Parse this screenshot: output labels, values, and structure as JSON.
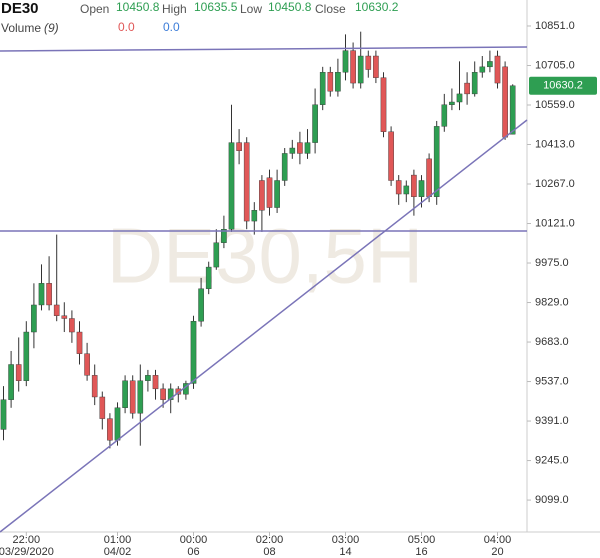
{
  "chart_data": {
    "type": "candlestick",
    "title": "DE30",
    "watermark": "DE30,5H",
    "header": {
      "open_label": "Open",
      "open": 10450.8,
      "high_label": "High",
      "high": 10635.5,
      "low_label": "Low",
      "low": 10450.8,
      "close_label": "Close",
      "close": 10630.2,
      "volume_label": "Volume",
      "volume_period": "(9)",
      "volume_values": [
        "0.0",
        "0.0"
      ]
    },
    "up_color": "#2e9e52",
    "down_color": "#e05757",
    "categories": [
      null,
      null,
      null,
      "22:00",
      null,
      null,
      null,
      null,
      null,
      null,
      null,
      null,
      null,
      null,
      null,
      "01:00",
      null,
      null,
      null,
      null,
      null,
      null,
      null,
      null,
      null,
      "00:00",
      null,
      null,
      null,
      null,
      null,
      null,
      null,
      null,
      null,
      "02:00",
      null,
      null,
      null,
      null,
      null,
      null,
      null,
      null,
      null,
      "03:00",
      null,
      null,
      null,
      null,
      null,
      null,
      null,
      null,
      null,
      "05:00",
      null,
      null,
      null,
      null,
      null,
      null,
      null,
      null,
      null,
      "04:00",
      null,
      null
    ],
    "category_dates": [
      null,
      null,
      null,
      "03/29/2020",
      null,
      null,
      null,
      null,
      null,
      null,
      null,
      null,
      null,
      null,
      null,
      "04/02",
      null,
      null,
      null,
      null,
      null,
      null,
      null,
      null,
      null,
      "06",
      null,
      null,
      null,
      null,
      null,
      null,
      null,
      null,
      null,
      "08",
      null,
      null,
      null,
      null,
      null,
      null,
      null,
      null,
      null,
      "14",
      null,
      null,
      null,
      null,
      null,
      null,
      null,
      null,
      null,
      "16",
      null,
      null,
      null,
      null,
      null,
      null,
      null,
      null,
      null,
      "20",
      null,
      null
    ],
    "open": [
      9360,
      9470,
      9600,
      9540,
      9720,
      9820,
      9900,
      9820,
      9780,
      9770,
      9720,
      9640,
      9560,
      9480,
      9400,
      9320,
      9440,
      9540,
      9420,
      9540,
      9560,
      9510,
      9470,
      9510,
      9490,
      9530,
      9760,
      9880,
      9960,
      10050,
      10100,
      10420,
      10420,
      10130,
      10280,
      10290,
      10180,
      10280,
      10380,
      10420,
      10380,
      10420,
      10560,
      10680,
      10610,
      10680,
      10760,
      10640,
      10740,
      10740,
      10660,
      10460,
      10280,
      10230,
      10300,
      10220,
      10360,
      10220,
      10480,
      10560,
      10570,
      10640,
      10600,
      10680,
      10700,
      10740,
      10700,
      10450.8
    ],
    "high": [
      9520,
      9650,
      9700,
      9760,
      9900,
      9970,
      10000,
      10080,
      9830,
      9800,
      9760,
      9680,
      9600,
      9500,
      9420,
      9460,
      9560,
      9560,
      9600,
      9580,
      9580,
      9530,
      9530,
      9520,
      9540,
      9780,
      9920,
      9980,
      10100,
      10150,
      10560,
      10470,
      10440,
      10200,
      10300,
      10320,
      10320,
      10400,
      10430,
      10460,
      10470,
      10620,
      10700,
      10700,
      10730,
      10820,
      10790,
      10830,
      10760,
      10760,
      10680,
      10480,
      10300,
      10280,
      10320,
      10300,
      10380,
      10500,
      10600,
      10620,
      10720,
      10680,
      10720,
      10740,
      10760,
      10760,
      10720,
      10635.5
    ],
    "low": [
      9320,
      9440,
      9500,
      9520,
      9660,
      9800,
      9800,
      9760,
      9720,
      9680,
      9600,
      9540,
      9450,
      9360,
      9290,
      9300,
      9420,
      9400,
      9300,
      9500,
      9470,
      9440,
      9420,
      9460,
      9470,
      9510,
      9740,
      9860,
      9950,
      10030,
      10090,
      10340,
      10100,
      10080,
      10090,
      10150,
      10160,
      10260,
      10360,
      10340,
      10360,
      10380,
      10540,
      10590,
      10590,
      10650,
      10620,
      10620,
      10660,
      10640,
      10440,
      10260,
      10190,
      10200,
      10150,
      10180,
      10200,
      10190,
      10460,
      10540,
      10540,
      10560,
      10590,
      10660,
      10680,
      10620,
      10430,
      10450.8
    ],
    "close": [
      9470,
      9600,
      9540,
      9720,
      9820,
      9900,
      9820,
      9780,
      9770,
      9720,
      9640,
      9560,
      9480,
      9400,
      9320,
      9440,
      9540,
      9420,
      9540,
      9560,
      9510,
      9470,
      9510,
      9490,
      9530,
      9760,
      9880,
      9960,
      10050,
      10100,
      10420,
      10390,
      10130,
      10170,
      10170,
      10180,
      10280,
      10380,
      10400,
      10380,
      10420,
      10560,
      10680,
      10610,
      10680,
      10760,
      10640,
      10740,
      10690,
      10660,
      10460,
      10280,
      10230,
      10260,
      10220,
      10280,
      10220,
      10480,
      10560,
      10570,
      10600,
      10600,
      10680,
      10700,
      10720,
      10640,
      10440,
      10630.2
    ],
    "ylim": [
      8981,
      10947
    ],
    "yticks": [
      {
        "value": 10851,
        "label": "10851.0"
      },
      {
        "value": 10705,
        "label": "10705.0"
      },
      {
        "value": 10559,
        "label": "10559.0"
      },
      {
        "value": 10413,
        "label": "10413.0"
      },
      {
        "value": 10267,
        "label": "10267.0"
      },
      {
        "value": 10121,
        "label": "10121.0"
      },
      {
        "value": 9975,
        "label": "9975.0"
      },
      {
        "value": 9829,
        "label": "9829.0"
      },
      {
        "value": 9683,
        "label": "9683.0"
      },
      {
        "value": 9537,
        "label": "9537.0"
      },
      {
        "value": 9391,
        "label": "9391.0"
      },
      {
        "value": 9245,
        "label": "9245.0"
      },
      {
        "value": 9099,
        "label": "9099.0"
      }
    ]
  }
}
